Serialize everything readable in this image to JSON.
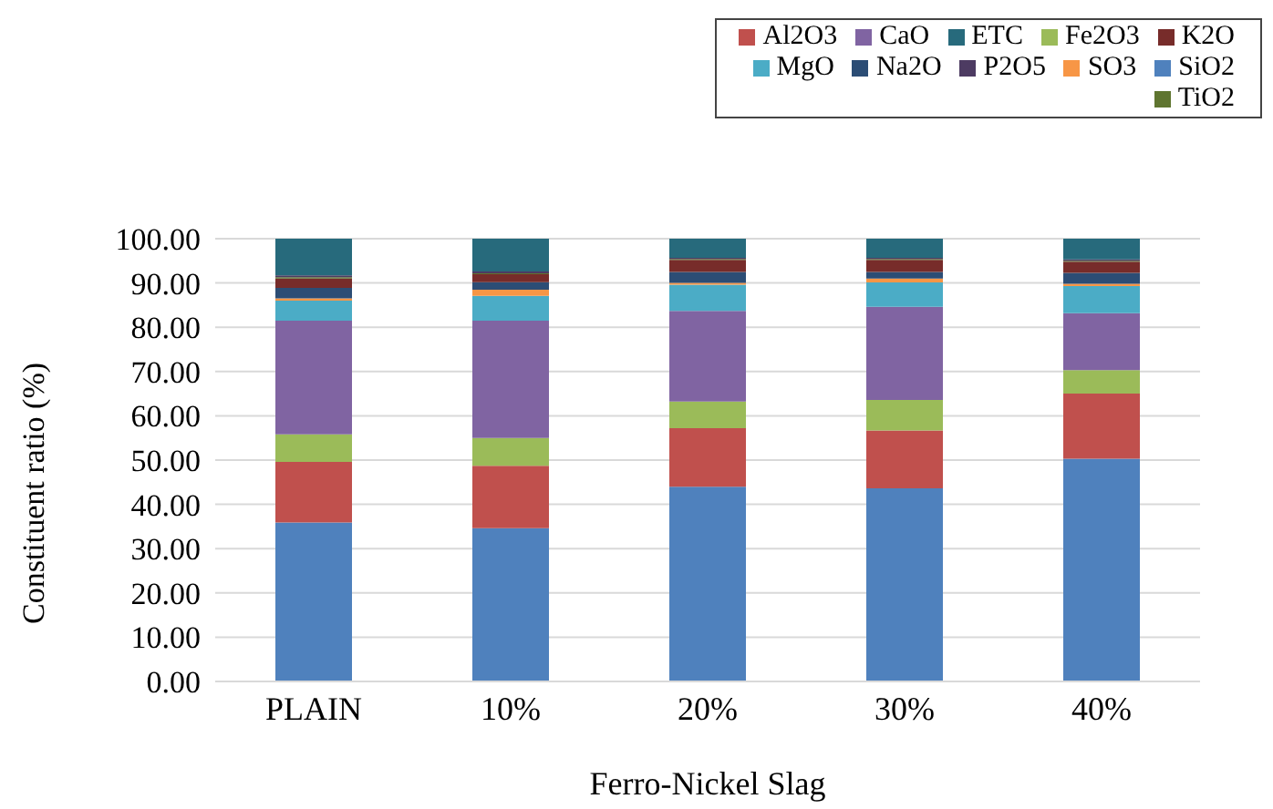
{
  "chart_data": {
    "type": "bar",
    "stacked": true,
    "xlabel": "Ferro-Nickel Slag",
    "ylabel": "Constituent ratio (%)",
    "categories": [
      "PLAIN",
      "10%",
      "20%",
      "30%",
      "40%"
    ],
    "series": [
      {
        "name": "SiO2",
        "color": "#4f81bd",
        "values": [
          35.9,
          34.6,
          44.0,
          43.6,
          50.3
        ]
      },
      {
        "name": "Al2O3",
        "color": "#c0504d",
        "values": [
          13.7,
          14.1,
          13.2,
          13.1,
          14.7
        ]
      },
      {
        "name": "Fe2O3",
        "color": "#9bbb59",
        "values": [
          6.2,
          6.3,
          6.0,
          6.9,
          5.3
        ]
      },
      {
        "name": "CaO",
        "color": "#8064a2",
        "values": [
          25.7,
          26.5,
          20.5,
          21.0,
          12.9
        ]
      },
      {
        "name": "MgO",
        "color": "#4bacc6",
        "values": [
          4.5,
          5.6,
          5.9,
          5.5,
          6.1
        ]
      },
      {
        "name": "SO3",
        "color": "#f79646",
        "values": [
          0.5,
          1.4,
          0.4,
          0.9,
          0.5
        ]
      },
      {
        "name": "Na2O",
        "color": "#2c4d75",
        "values": [
          2.4,
          1.7,
          2.5,
          1.5,
          2.5
        ]
      },
      {
        "name": "K2O",
        "color": "#772c2a",
        "values": [
          2.1,
          1.8,
          2.7,
          2.7,
          2.5
        ]
      },
      {
        "name": "TiO2",
        "color": "#5f7530",
        "values": [
          0.3,
          0.2,
          0.2,
          0.2,
          0.2
        ]
      },
      {
        "name": "P2O5",
        "color": "#4d3b62",
        "values": [
          0.4,
          0.4,
          0.3,
          0.3,
          0.3
        ]
      },
      {
        "name": "ETC",
        "color": "#276a7c",
        "values": [
          8.3,
          7.4,
          4.3,
          4.3,
          4.7
        ]
      }
    ],
    "ylim": [
      0,
      100
    ],
    "yticks": [
      {
        "value": 0,
        "label": "0.00"
      },
      {
        "value": 10,
        "label": "10.00"
      },
      {
        "value": 20,
        "label": "20.00"
      },
      {
        "value": 30,
        "label": "30.00"
      },
      {
        "value": 40,
        "label": "40.00"
      },
      {
        "value": 50,
        "label": "50.00"
      },
      {
        "value": 60,
        "label": "60.00"
      },
      {
        "value": 70,
        "label": "70.00"
      },
      {
        "value": 80,
        "label": "80.00"
      },
      {
        "value": 90,
        "label": "90.00"
      },
      {
        "value": 100,
        "label": "100.00"
      }
    ],
    "grid": "y",
    "legend": "top right"
  }
}
